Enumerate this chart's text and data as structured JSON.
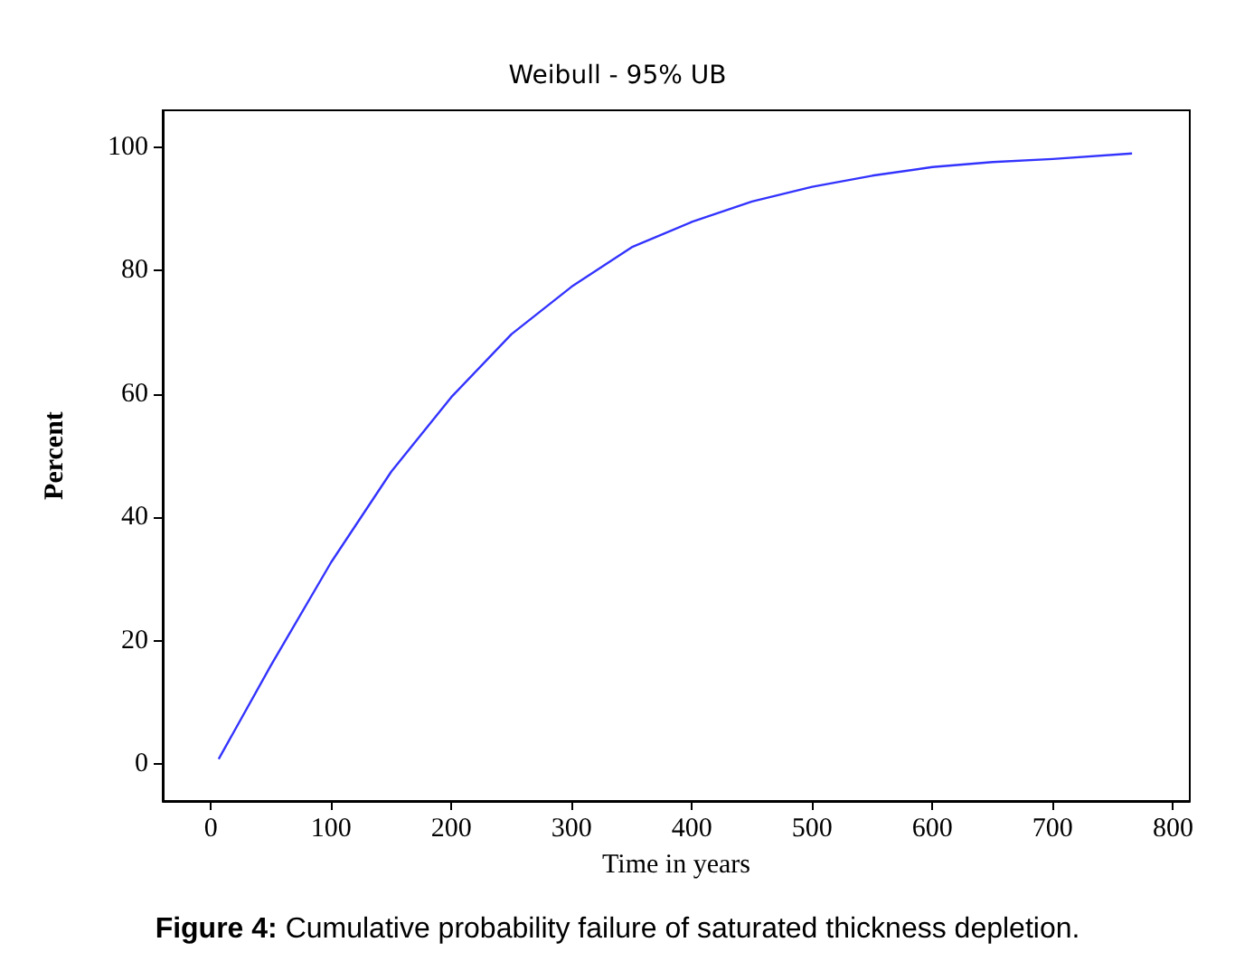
{
  "chart_data": {
    "type": "line",
    "title": "Weibull - 95% UB",
    "xlabel": "Time in years",
    "ylabel": "Percent",
    "annotations": [
      "Figure 4: Cumulative probability failure of saturated thickness depletion."
    ],
    "x": [
      6.5,
      50,
      100,
      150,
      200,
      250,
      300,
      350,
      400,
      450,
      500,
      550,
      600,
      650,
      700,
      766
    ],
    "series": [
      {
        "color": "#3333ff",
        "values": [
          0.8,
          16,
          32.7,
          47.4,
          59.5,
          69.7,
          77.4,
          83.8,
          87.9,
          91.2,
          93.6,
          95.4,
          96.8,
          97.6,
          98.1,
          99
        ]
      }
    ],
    "xlim": [
      -40,
      814
    ],
    "ylim": [
      -6,
      106
    ],
    "xticks": [
      0,
      100,
      200,
      300,
      400,
      500,
      600,
      700,
      800
    ],
    "yticks": [
      0,
      20,
      40,
      60,
      80,
      100
    ],
    "grid": false,
    "marker": "none",
    "line_style": "solid"
  }
}
